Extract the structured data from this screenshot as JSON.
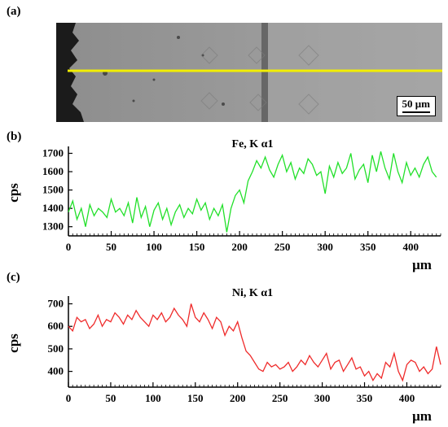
{
  "panels": {
    "a": "(a)",
    "b": "(b)",
    "c": "(c)"
  },
  "micrograph": {
    "scale_bar_label": "50 μm",
    "line_color": "#f2ee00"
  },
  "chart_data": [
    {
      "type": "line",
      "title": "Fe, K α1",
      "ylabel": "cps",
      "xlabel": "μm",
      "xlim": [
        0,
        435
      ],
      "ylim": [
        1250,
        1720
      ],
      "xticks": [
        0,
        50,
        100,
        150,
        200,
        250,
        300,
        350,
        400
      ],
      "yticks": [
        1300,
        1400,
        1500,
        1600,
        1700
      ],
      "color": "#22e02a",
      "series": [
        {
          "x": [
            0,
            5,
            10,
            15,
            20,
            25,
            30,
            35,
            40,
            45,
            50,
            55,
            60,
            65,
            70,
            75,
            80,
            85,
            90,
            95,
            100,
            105,
            110,
            115,
            120,
            125,
            130,
            135,
            140,
            145,
            150,
            155,
            160,
            165,
            170,
            175,
            180,
            185,
            190,
            195,
            200,
            205,
            210,
            215,
            220,
            225,
            230,
            235,
            240,
            245,
            250,
            255,
            260,
            265,
            270,
            275,
            280,
            285,
            290,
            295,
            300,
            305,
            310,
            315,
            320,
            325,
            330,
            335,
            340,
            345,
            350,
            355,
            360,
            365,
            370,
            375,
            380,
            385,
            390,
            395,
            400,
            405,
            410,
            415,
            420,
            425,
            430
          ],
          "values": [
            1380,
            1440,
            1340,
            1400,
            1300,
            1420,
            1360,
            1400,
            1380,
            1350,
            1450,
            1380,
            1400,
            1360,
            1430,
            1320,
            1460,
            1350,
            1410,
            1300,
            1390,
            1430,
            1340,
            1400,
            1310,
            1380,
            1420,
            1350,
            1400,
            1370,
            1450,
            1390,
            1430,
            1340,
            1400,
            1360,
            1420,
            1270,
            1400,
            1470,
            1500,
            1430,
            1550,
            1600,
            1660,
            1620,
            1680,
            1610,
            1570,
            1640,
            1690,
            1600,
            1650,
            1560,
            1620,
            1590,
            1670,
            1640,
            1580,
            1600,
            1480,
            1630,
            1570,
            1650,
            1590,
            1620,
            1700,
            1560,
            1610,
            1640,
            1540,
            1690,
            1600,
            1710,
            1620,
            1560,
            1700,
            1600,
            1540,
            1650,
            1580,
            1620,
            1570,
            1640,
            1680,
            1600,
            1570
          ]
        }
      ]
    },
    {
      "type": "line",
      "title": "Ni, K α1",
      "ylabel": "cps",
      "xlabel": "μm",
      "xlim": [
        0,
        440
      ],
      "ylim": [
        330,
        720
      ],
      "xticks": [
        0,
        50,
        100,
        150,
        200,
        250,
        300,
        350,
        400
      ],
      "yticks": [
        400,
        500,
        600,
        700
      ],
      "color": "#ef2b2b",
      "series": [
        {
          "x": [
            0,
            5,
            10,
            15,
            20,
            25,
            30,
            35,
            40,
            45,
            50,
            55,
            60,
            65,
            70,
            75,
            80,
            85,
            90,
            95,
            100,
            105,
            110,
            115,
            120,
            125,
            130,
            135,
            140,
            145,
            150,
            155,
            160,
            165,
            170,
            175,
            180,
            185,
            190,
            195,
            200,
            205,
            210,
            215,
            220,
            225,
            230,
            235,
            240,
            245,
            250,
            255,
            260,
            265,
            270,
            275,
            280,
            285,
            290,
            295,
            300,
            305,
            310,
            315,
            320,
            325,
            330,
            335,
            340,
            345,
            350,
            355,
            360,
            365,
            370,
            375,
            380,
            385,
            390,
            395,
            400,
            405,
            410,
            415,
            420,
            425,
            430,
            435,
            440
          ],
          "values": [
            600,
            580,
            640,
            620,
            630,
            590,
            610,
            650,
            600,
            630,
            620,
            660,
            640,
            610,
            650,
            630,
            670,
            640,
            620,
            600,
            650,
            630,
            660,
            620,
            640,
            680,
            650,
            630,
            600,
            700,
            640,
            620,
            660,
            630,
            590,
            640,
            620,
            560,
            600,
            580,
            620,
            550,
            490,
            470,
            440,
            410,
            400,
            440,
            420,
            430,
            410,
            420,
            440,
            400,
            420,
            450,
            430,
            470,
            440,
            420,
            450,
            480,
            410,
            440,
            450,
            400,
            430,
            460,
            410,
            420,
            380,
            400,
            360,
            390,
            370,
            440,
            420,
            480,
            400,
            360,
            430,
            450,
            440,
            400,
            420,
            390,
            410,
            510,
            430
          ]
        }
      ]
    }
  ]
}
